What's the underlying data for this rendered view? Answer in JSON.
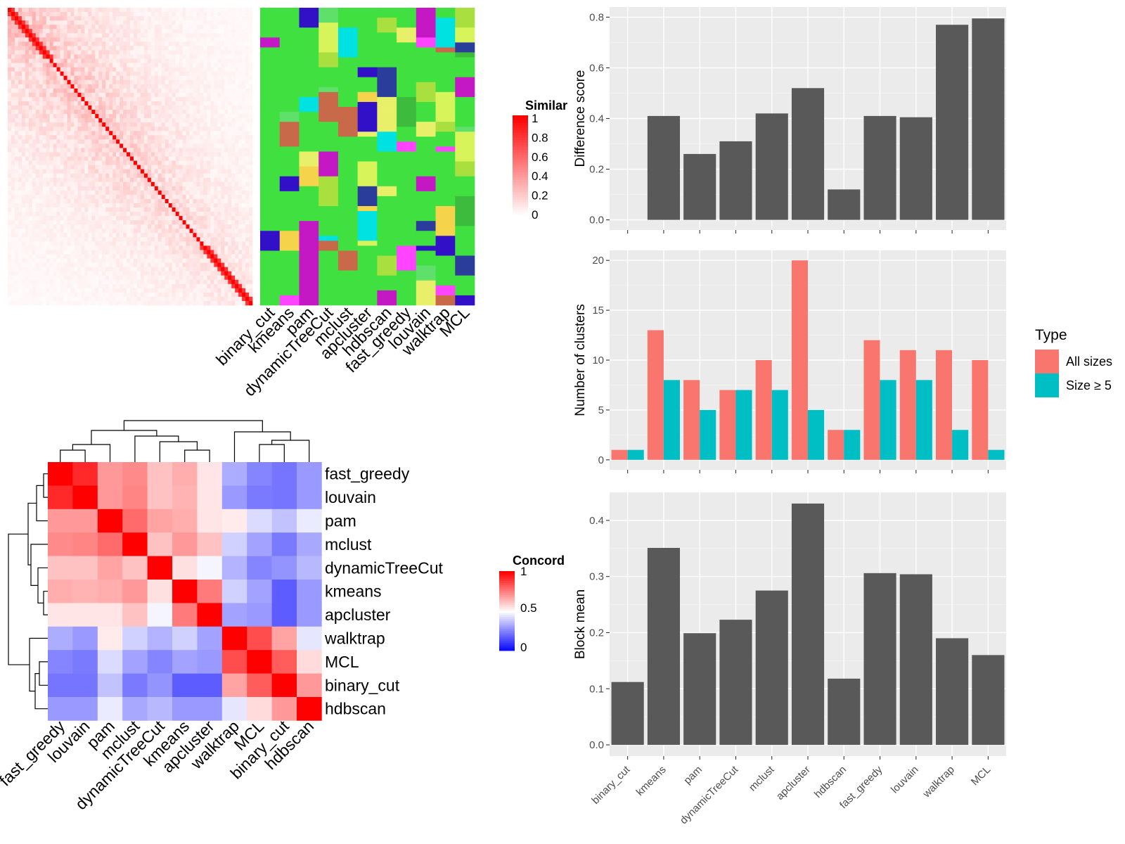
{
  "colors": {
    "bar_dark": "#595959",
    "all_sizes": "#F8766D",
    "size5": "#00BFC4",
    "heat_high": "#FF0000",
    "heat_mid": "#FFFFFF",
    "heat_low": "#0000FF",
    "cluster_palette": [
      "#3fe03f",
      "#5ee06a",
      "#f5d34a",
      "#ff44ff",
      "#2a3d9a",
      "#c318c3",
      "#3210c8",
      "#00e1e1",
      "#d7f55a",
      "#a9e03f",
      "#e8f06a",
      "#c86a4a",
      "#3dbb3d"
    ]
  },
  "sim_heatmap": {
    "legend_title": "Similar",
    "legend_ticks": [
      "1",
      "0.8",
      "0.6",
      "0.4",
      "0.2",
      "0"
    ],
    "column_labels": [
      "binary_cut",
      "kmeans",
      "pam",
      "dynamicTreeCut",
      "mclust",
      "apcluster",
      "hdbscan",
      "fast_greedy",
      "louvain",
      "walktrap",
      "MCL"
    ]
  },
  "concordance_heatmap": {
    "legend_title": "Concord",
    "legend_ticks": [
      "1",
      "0.5",
      "0"
    ],
    "row_labels": [
      "fast_greedy",
      "louvain",
      "pam",
      "mclust",
      "dynamicTreeCut",
      "kmeans",
      "apcluster",
      "walktrap",
      "MCL",
      "binary_cut",
      "hdbscan"
    ],
    "col_labels": [
      "fast_greedy",
      "louvain",
      "pam",
      "mclust",
      "dynamicTreeCut",
      "kmeans",
      "apcluster",
      "walktrap",
      "MCL",
      "binary_cut",
      "hdbscan"
    ],
    "matrix": [
      [
        1.0,
        0.92,
        0.7,
        0.73,
        0.62,
        0.66,
        0.55,
        0.34,
        0.26,
        0.23,
        0.3
      ],
      [
        0.92,
        1.0,
        0.7,
        0.74,
        0.62,
        0.65,
        0.55,
        0.3,
        0.24,
        0.23,
        0.3
      ],
      [
        0.7,
        0.7,
        1.0,
        0.79,
        0.68,
        0.66,
        0.55,
        0.54,
        0.43,
        0.38,
        0.46
      ],
      [
        0.73,
        0.74,
        0.79,
        1.0,
        0.62,
        0.7,
        0.62,
        0.41,
        0.32,
        0.24,
        0.33
      ],
      [
        0.62,
        0.62,
        0.68,
        0.62,
        1.0,
        0.56,
        0.48,
        0.35,
        0.26,
        0.29,
        0.36
      ],
      [
        0.66,
        0.65,
        0.66,
        0.7,
        0.56,
        1.0,
        0.76,
        0.41,
        0.32,
        0.18,
        0.3
      ],
      [
        0.55,
        0.55,
        0.55,
        0.62,
        0.48,
        0.76,
        1.0,
        0.32,
        0.3,
        0.18,
        0.3
      ],
      [
        0.34,
        0.3,
        0.54,
        0.41,
        0.35,
        0.41,
        0.32,
        1.0,
        0.85,
        0.68,
        0.45
      ],
      [
        0.26,
        0.24,
        0.43,
        0.32,
        0.26,
        0.32,
        0.3,
        0.85,
        1.0,
        0.82,
        0.57
      ],
      [
        0.23,
        0.23,
        0.38,
        0.24,
        0.29,
        0.18,
        0.18,
        0.68,
        0.82,
        1.0,
        0.7
      ],
      [
        0.3,
        0.3,
        0.46,
        0.33,
        0.36,
        0.3,
        0.3,
        0.45,
        0.57,
        0.7,
        1.0
      ]
    ]
  },
  "chart_data": [
    {
      "type": "bar",
      "categories": [
        "binary_cut",
        "kmeans",
        "pam",
        "dynamicTreeCut",
        "mclust",
        "apcluster",
        "hdbscan",
        "fast_greedy",
        "louvain",
        "walktrap",
        "MCL"
      ],
      "values": [
        0.0,
        0.41,
        0.26,
        0.31,
        0.42,
        0.52,
        0.12,
        0.41,
        0.405,
        0.77,
        0.795
      ],
      "ylabel": "Difference score",
      "ylim": [
        -0.04,
        0.84
      ],
      "yticks": [
        "0.0",
        "0.2",
        "0.4",
        "0.6",
        "0.8"
      ]
    },
    {
      "type": "bar",
      "categories": [
        "binary_cut",
        "kmeans",
        "pam",
        "dynamicTreeCut",
        "mclust",
        "apcluster",
        "hdbscan",
        "fast_greedy",
        "louvain",
        "walktrap",
        "MCL"
      ],
      "series": [
        {
          "name": "All sizes",
          "values": [
            1,
            13,
            8,
            7,
            10,
            20,
            3,
            12,
            11,
            11,
            10
          ]
        },
        {
          "name": "Size ≥ 5",
          "values": [
            1,
            8,
            5,
            7,
            7,
            5,
            3,
            8,
            8,
            3,
            1
          ]
        }
      ],
      "ylabel": "Number of clusters",
      "ylim": [
        -1,
        21
      ],
      "yticks": [
        "0",
        "5",
        "10",
        "15",
        "20"
      ],
      "legend": {
        "title": "Type",
        "position": "right"
      }
    },
    {
      "type": "bar",
      "categories": [
        "binary_cut",
        "kmeans",
        "pam",
        "dynamicTreeCut",
        "mclust",
        "apcluster",
        "hdbscan",
        "fast_greedy",
        "louvain",
        "walktrap",
        "MCL"
      ],
      "values": [
        0.112,
        0.351,
        0.199,
        0.223,
        0.275,
        0.43,
        0.118,
        0.306,
        0.304,
        0.19,
        0.16
      ],
      "ylabel": "Block mean",
      "ylim": [
        -0.02,
        0.45
      ],
      "yticks": [
        "0.0",
        "0.1",
        "0.2",
        "0.3",
        "0.4"
      ]
    }
  ]
}
